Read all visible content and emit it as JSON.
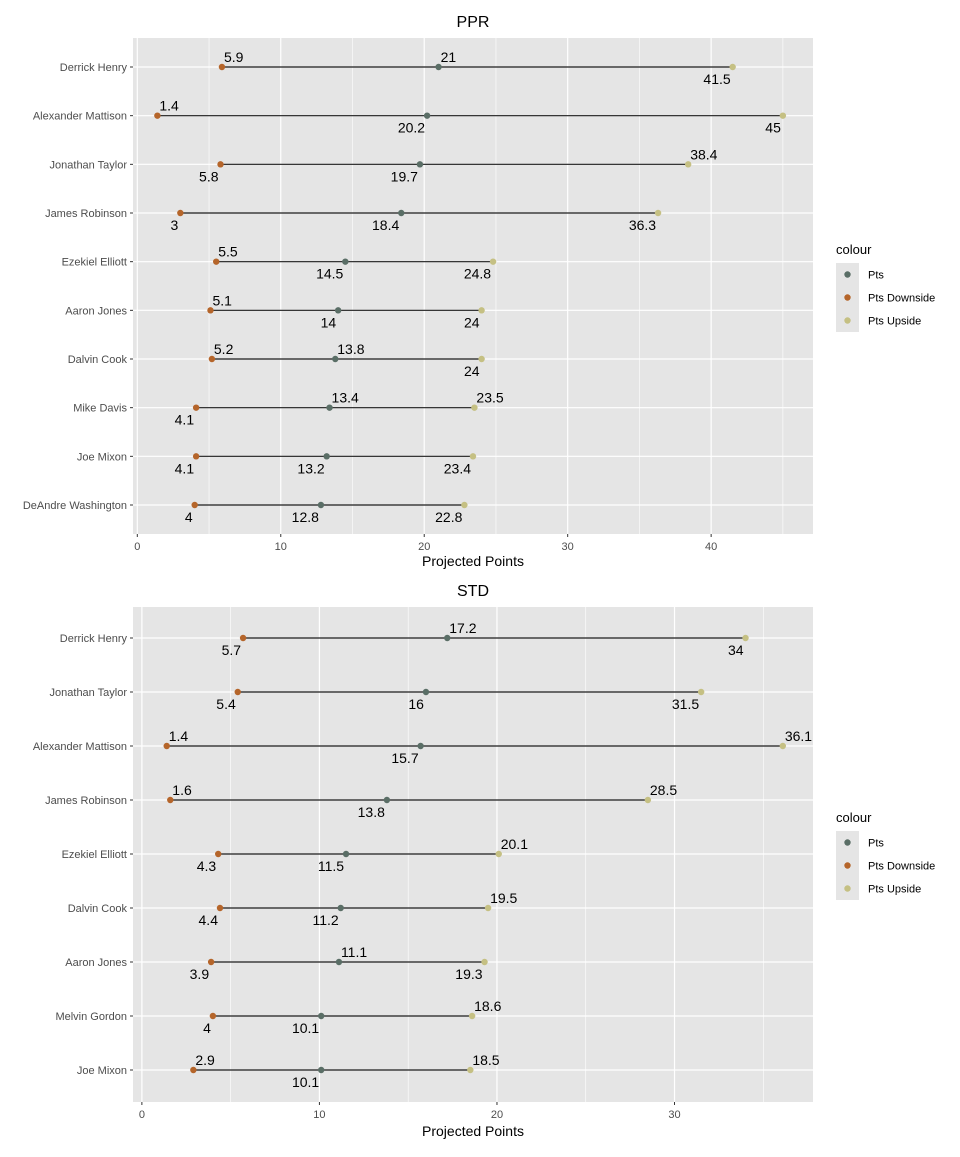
{
  "colors": {
    "panel_bg": "#E5E5E5",
    "grid": "#FFFFFF",
    "segment": "#1A1A1A",
    "text": "#000000",
    "axis_text": "#4D4D4D",
    "Pts": "#5A6E66",
    "Pts Downside": "#B5652A",
    "Pts Upside": "#C5C083"
  },
  "chart_data": [
    {
      "type": "dumbbell",
      "title": "PPR",
      "xlabel": "Projected Points",
      "ylabel": "",
      "xlim": [
        -0.3,
        47.1
      ],
      "x_ticks": [
        0,
        10,
        20,
        30,
        40
      ],
      "grid": true,
      "legend": {
        "title": "colour",
        "position": "right",
        "entries": [
          "Pts",
          "Pts Downside",
          "Pts Upside"
        ]
      },
      "categories": [
        "Derrick Henry",
        "Alexander Mattison",
        "Jonathan Taylor",
        "James Robinson",
        "Ezekiel Elliott",
        "Aaron Jones",
        "Dalvin Cook",
        "Mike Davis",
        "Joe Mixon",
        "DeAndre Washington"
      ],
      "series": [
        {
          "name": "Pts Downside",
          "values": [
            5.9,
            1.4,
            5.8,
            3,
            5.5,
            5.1,
            5.2,
            4.1,
            4.1,
            4
          ],
          "label_pos": [
            "above",
            "above",
            "below",
            "below",
            "above",
            "above",
            "above",
            "below",
            "below",
            "below"
          ]
        },
        {
          "name": "Pts",
          "values": [
            21,
            20.2,
            19.7,
            18.4,
            14.5,
            14,
            13.8,
            13.4,
            13.2,
            12.8
          ],
          "label_pos": [
            "above",
            "below",
            "below",
            "below",
            "below",
            "below",
            "above",
            "above",
            "below",
            "below"
          ]
        },
        {
          "name": "Pts Upside",
          "values": [
            41.5,
            45,
            38.4,
            36.3,
            24.8,
            24,
            24,
            23.5,
            23.4,
            22.8
          ],
          "label_pos": [
            "below",
            "below",
            "above",
            "below",
            "below",
            "below",
            "below",
            "above",
            "below",
            "below"
          ]
        }
      ]
    },
    {
      "type": "dumbbell",
      "title": "STD",
      "xlabel": "Projected Points",
      "ylabel": "",
      "xlim": [
        -0.5,
        37.8
      ],
      "x_ticks": [
        0,
        10,
        20,
        30
      ],
      "grid": true,
      "legend": {
        "title": "colour",
        "position": "right",
        "entries": [
          "Pts",
          "Pts Downside",
          "Pts Upside"
        ]
      },
      "categories": [
        "Derrick Henry",
        "Jonathan Taylor",
        "Alexander Mattison",
        "James Robinson",
        "Ezekiel Elliott",
        "Dalvin Cook",
        "Aaron Jones",
        "Melvin Gordon",
        "Joe Mixon"
      ],
      "series": [
        {
          "name": "Pts Downside",
          "values": [
            5.7,
            5.4,
            1.4,
            1.6,
            4.3,
            4.4,
            3.9,
            4,
            2.9
          ],
          "label_pos": [
            "below",
            "below",
            "above",
            "above",
            "below",
            "below",
            "below",
            "below",
            "above"
          ]
        },
        {
          "name": "Pts",
          "values": [
            17.2,
            16,
            15.7,
            13.8,
            11.5,
            11.2,
            11.1,
            10.1,
            10.1
          ],
          "label_pos": [
            "above",
            "below",
            "below",
            "below",
            "below",
            "below",
            "above",
            "below",
            "below"
          ]
        },
        {
          "name": "Pts Upside",
          "values": [
            34,
            31.5,
            36.1,
            28.5,
            20.1,
            19.5,
            19.3,
            18.6,
            18.5
          ],
          "label_pos": [
            "below",
            "below",
            "above",
            "above",
            "above",
            "above",
            "below",
            "above",
            "above"
          ]
        }
      ]
    }
  ]
}
